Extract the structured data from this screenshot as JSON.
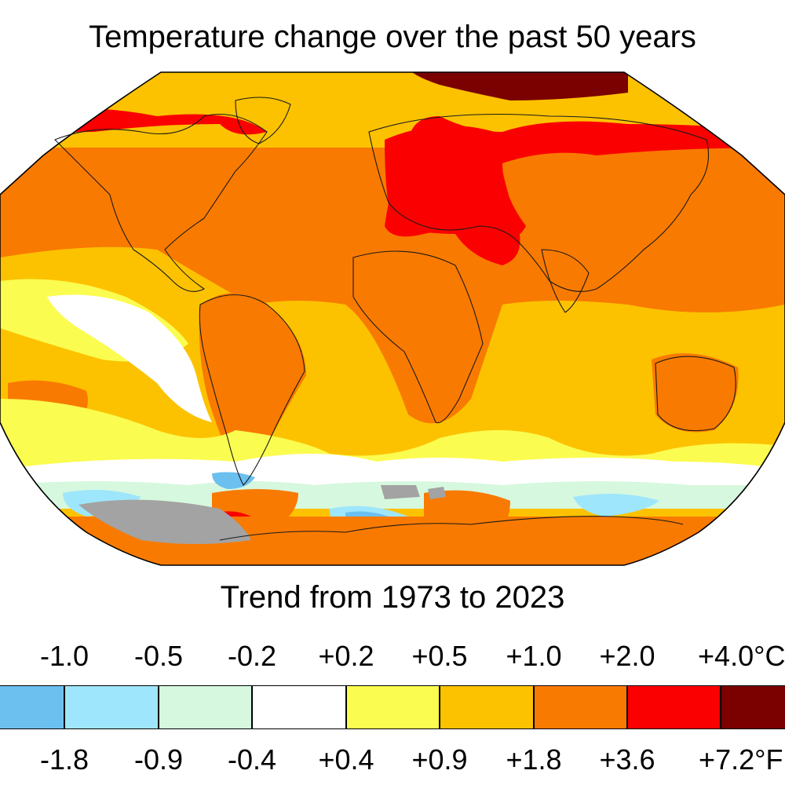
{
  "title": "Temperature change over the past 50 years",
  "subtitle": "Trend from 1973 to 2023",
  "map": {
    "projection": "robinson",
    "colors": {
      "lt_minus_1_0": "#6cc0f0",
      "minus_1_0_to_minus_0_5": "#9ee6fb",
      "minus_0_5_to_minus_0_2": "#d6f8df",
      "minus_0_2_to_plus_0_2": "#ffffff",
      "plus_0_2_to_plus_0_5": "#fbfc50",
      "plus_0_5_to_plus_1_0": "#fcc200",
      "plus_1_0_to_plus_2_0": "#f97a00",
      "plus_2_0_to_plus_4_0": "#fb0000",
      "gt_plus_4_0": "#7b0000",
      "no_data": "#a3a3a3"
    }
  },
  "legend": {
    "celsius_ticks": [
      "-1.0",
      "-0.5",
      "-0.2",
      "+0.2",
      "+0.5",
      "+1.0",
      "+2.0",
      "+4.0°C"
    ],
    "fahrenheit_ticks": [
      "-1.8",
      "-0.9",
      "-0.4",
      "+0.4",
      "+0.9",
      "+1.8",
      "+3.6",
      "+7.2°F"
    ],
    "bins": [
      {
        "color": "#6cc0f0"
      },
      {
        "color": "#9ee6fb"
      },
      {
        "color": "#d6f8df"
      },
      {
        "color": "#ffffff"
      },
      {
        "color": "#fbfc50"
      },
      {
        "color": "#fcc200"
      },
      {
        "color": "#f97a00"
      },
      {
        "color": "#fb0000"
      },
      {
        "color": "#7b0000"
      }
    ]
  }
}
